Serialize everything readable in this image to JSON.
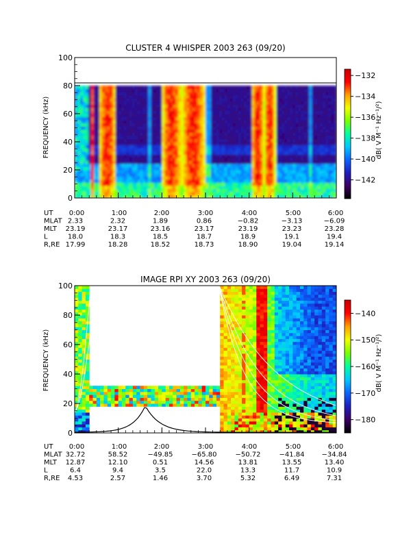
{
  "chart_data": [
    {
      "type": "heatmap",
      "title": "CLUSTER 4 WHISPER 2003 263 (09/20)",
      "ylabel": "FREQUENCY (kHz)",
      "ylim": [
        0,
        100
      ],
      "yticks": [
        "0",
        "20",
        "40",
        "60",
        "80",
        "100"
      ],
      "xlim": [
        "0:00",
        "6:00"
      ],
      "data_ceiling_khz": 80,
      "colorbar": {
        "label": "dB( V M⁻¹ Hz⁻¹/²)",
        "range": [
          -143.8,
          -131.4
        ],
        "ticks": [
          "-132",
          "-134",
          "-136",
          "-138",
          "-140",
          "-142"
        ],
        "colors": [
          "#000000",
          "#3c0064",
          "#1e1ebe",
          "#0a64ff",
          "#00c8ff",
          "#00ffa0",
          "#78ff00",
          "#f0ff00",
          "#ffa000",
          "#ff0000",
          "#c80000"
        ]
      },
      "bursts_ut_hours": [
        [
          0.35,
          0.45
        ],
        [
          0.55,
          0.95
        ],
        [
          2.0,
          2.45
        ],
        [
          2.45,
          3.0
        ],
        [
          4.05,
          4.35
        ],
        [
          4.35,
          4.6
        ]
      ],
      "ephemeris": {
        "row_labels": [
          "UT",
          "MLAT",
          "MLT",
          "L",
          "R,RE"
        ],
        "ut": [
          "0:00",
          "1:00",
          "2:00",
          "3:00",
          "4:00",
          "5:00",
          "6:00"
        ],
        "mlat": [
          "2.33",
          "2.32",
          "1.89",
          "0.86",
          "−0.82",
          "−3.13",
          "−6.09"
        ],
        "mlt": [
          "23.19",
          "23.17",
          "23.16",
          "23.17",
          "23.19",
          "23.23",
          "23.28"
        ],
        "l": [
          "18.0",
          "18.3",
          "18.5",
          "18.7",
          "18.9",
          "19.1",
          "19.4"
        ],
        "r_re": [
          "17.99",
          "18.28",
          "18.52",
          "18.73",
          "18.90",
          "19.04",
          "19.14"
        ]
      }
    },
    {
      "type": "heatmap",
      "title": "IMAGE RPI XY 2003 263 (09/20)",
      "ylabel": "FREQUENCY (kHz)",
      "ylim": [
        0,
        100
      ],
      "yticks": [
        "0",
        "20",
        "40",
        "60",
        "80",
        "100"
      ],
      "xlim": [
        "0:00",
        "6:00"
      ],
      "colorbar": {
        "label": "dB( V M⁻¹ Hz⁻¹/²)",
        "range": [
          -185,
          -135
        ],
        "ticks": [
          "-140",
          "-150",
          "-160",
          "-170",
          "-180"
        ],
        "colors": [
          "#000000",
          "#3c0064",
          "#1e1ebe",
          "#0a64ff",
          "#00c8ff",
          "#00ffa0",
          "#78ff00",
          "#f0ff00",
          "#ffa000",
          "#ff0000",
          "#c80000"
        ]
      },
      "data_gaps": [
        {
          "ut_hours": [
            0.35,
            3.3
          ],
          "freq_khz": [
            32,
            100
          ]
        },
        {
          "ut_hours": [
            0.35,
            3.3
          ],
          "freq_khz": [
            0,
            18
          ]
        }
      ],
      "plasma_frequency_peak": {
        "ut_hours": 1.62,
        "freq_khz": 18
      },
      "ephemeris": {
        "row_labels": [
          "UT",
          "MLAT",
          "MLT",
          "L",
          "R,RE"
        ],
        "ut": [
          "0:00",
          "1:00",
          "2:00",
          "3:00",
          "4:00",
          "5:00",
          "6:00"
        ],
        "mlat": [
          "32.72",
          "58.52",
          "−49.85",
          "−65.80",
          "−50.72",
          "−41.84",
          "−34.84"
        ],
        "mlt": [
          "12.87",
          "12.10",
          "0.51",
          "14.56",
          "13.81",
          "13.55",
          "13.40"
        ],
        "l": [
          "6.4",
          "9.4",
          "3.5",
          "22.0",
          "13.3",
          "11.7",
          "10.9"
        ],
        "r_re": [
          "4.53",
          "2.57",
          "1.46",
          "3.70",
          "5.32",
          "6.49",
          "7.31"
        ]
      }
    }
  ]
}
